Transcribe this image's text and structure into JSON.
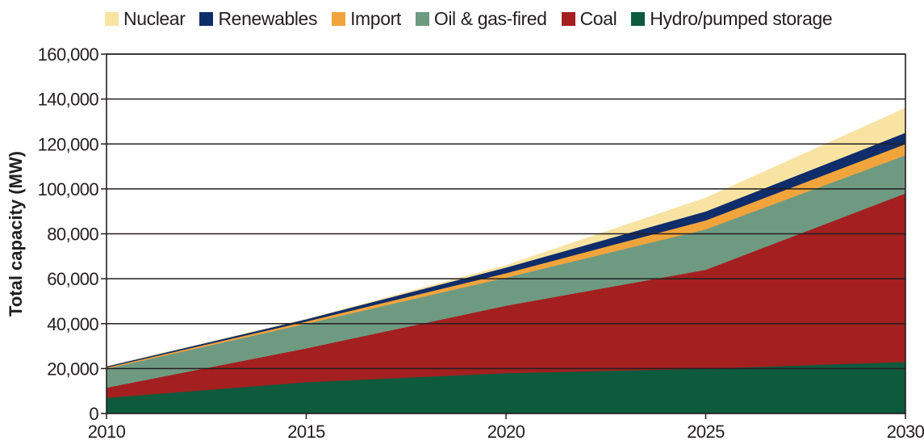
{
  "chart_data": {
    "type": "area",
    "stacked": true,
    "title": "",
    "xlabel": "",
    "ylabel": "Total capacity (MW)",
    "x": [
      2010,
      2015,
      2020,
      2025,
      2030
    ],
    "xlim": [
      2010,
      2030
    ],
    "ylim": [
      0,
      160000
    ],
    "x_ticks": [
      "2010",
      "2015",
      "2020",
      "2025",
      "2030"
    ],
    "y_ticks": [
      "0",
      "20,000",
      "40,000",
      "60,000",
      "80,000",
      "100,000",
      "120,000",
      "140,000",
      "160,000"
    ],
    "y_tick_values": [
      0,
      20000,
      40000,
      60000,
      80000,
      100000,
      120000,
      140000,
      160000
    ],
    "grid": true,
    "legend_position": "top",
    "series": [
      {
        "name": "Hydro/pumped storage",
        "color": "#0e5a3d",
        "values": [
          7000,
          14000,
          18000,
          20000,
          23000
        ]
      },
      {
        "name": "Coal",
        "color": "#a41f1f",
        "values": [
          4500,
          15000,
          30000,
          44000,
          75000
        ]
      },
      {
        "name": "Oil & gas-fired",
        "color": "#6e9a82",
        "values": [
          8500,
          11000,
          12500,
          18000,
          17000
        ]
      },
      {
        "name": "Import",
        "color": "#f2a43c",
        "values": [
          500,
          1000,
          2000,
          4000,
          5000
        ]
      },
      {
        "name": "Renewables",
        "color": "#0f2d6b",
        "values": [
          500,
          1000,
          2500,
          4000,
          5000
        ]
      },
      {
        "name": "Nuclear",
        "color": "#f8e3a2",
        "values": [
          0,
          0,
          1000,
          6000,
          11000
        ]
      }
    ],
    "legend_order": [
      "Nuclear",
      "Renewables",
      "Import",
      "Oil & gas-fired",
      "Coal",
      "Hydro/pumped storage"
    ]
  }
}
